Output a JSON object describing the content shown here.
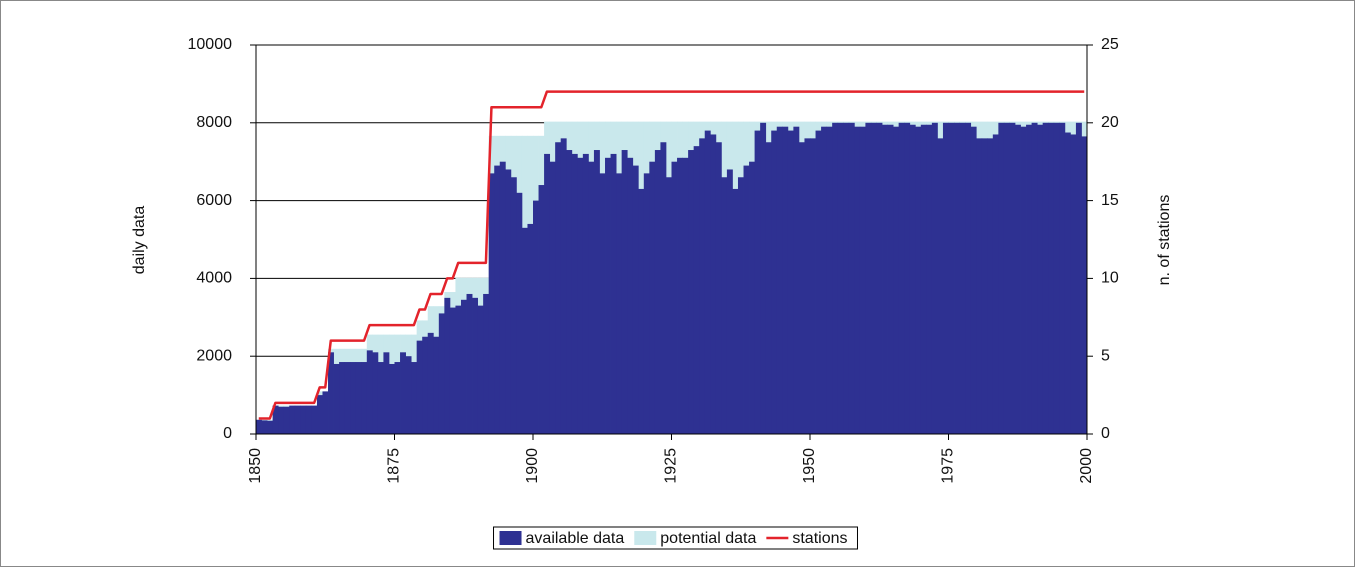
{
  "chart_data": {
    "type": "bar",
    "x_label": "",
    "y_label": "daily data",
    "y2_label": "n. of stations",
    "x": [
      1850,
      1851,
      1852,
      1853,
      1854,
      1855,
      1856,
      1857,
      1858,
      1859,
      1860,
      1861,
      1862,
      1863,
      1864,
      1865,
      1866,
      1867,
      1868,
      1869,
      1870,
      1871,
      1872,
      1873,
      1874,
      1875,
      1876,
      1877,
      1878,
      1879,
      1880,
      1881,
      1882,
      1883,
      1884,
      1885,
      1886,
      1887,
      1888,
      1889,
      1890,
      1891,
      1892,
      1893,
      1894,
      1895,
      1896,
      1897,
      1898,
      1899,
      1900,
      1901,
      1902,
      1903,
      1904,
      1905,
      1906,
      1907,
      1908,
      1909,
      1910,
      1911,
      1912,
      1913,
      1914,
      1915,
      1916,
      1917,
      1918,
      1919,
      1920,
      1921,
      1922,
      1923,
      1924,
      1925,
      1926,
      1927,
      1928,
      1929,
      1930,
      1931,
      1932,
      1933,
      1934,
      1935,
      1936,
      1937,
      1938,
      1939,
      1940,
      1941,
      1942,
      1943,
      1944,
      1945,
      1946,
      1947,
      1948,
      1949,
      1950,
      1951,
      1952,
      1953,
      1954,
      1955,
      1956,
      1957,
      1958,
      1959,
      1960,
      1961,
      1962,
      1963,
      1964,
      1965,
      1966,
      1967,
      1968,
      1969,
      1970,
      1971,
      1972,
      1973,
      1974,
      1975,
      1976,
      1977,
      1978,
      1979,
      1980,
      1981,
      1982,
      1983,
      1984,
      1985,
      1986,
      1987,
      1988,
      1989,
      1990,
      1991,
      1992,
      1993,
      1994,
      1995,
      1996,
      1997,
      1998,
      1999
    ],
    "series": [
      {
        "name": "available data",
        "color": "#2e3192",
        "type": "bar",
        "values": [
          365,
          350,
          340,
          730,
          700,
          700,
          730,
          730,
          730,
          730,
          730,
          1000,
          1095,
          2100,
          1800,
          1850,
          1850,
          1850,
          1850,
          1850,
          2150,
          2100,
          1850,
          2100,
          1800,
          1850,
          2100,
          2000,
          1850,
          2400,
          2500,
          2600,
          2500,
          3100,
          3500,
          3250,
          3300,
          3450,
          3600,
          3500,
          3300,
          3600,
          6700,
          6900,
          7000,
          6800,
          6600,
          6200,
          5300,
          5400,
          6000,
          6400,
          7200,
          7000,
          7500,
          7600,
          7300,
          7200,
          7100,
          7200,
          7000,
          7300,
          6700,
          7100,
          7200,
          6700,
          7300,
          7100,
          6900,
          6300,
          6700,
          7000,
          7300,
          7500,
          6600,
          7000,
          7100,
          7100,
          7300,
          7400,
          7600,
          7800,
          7700,
          7500,
          6600,
          6800,
          6300,
          6600,
          6900,
          7000,
          7800,
          8000,
          7500,
          7800,
          7900,
          7900,
          7800,
          7900,
          7500,
          7600,
          7600,
          7800,
          7900,
          7900,
          8000,
          8000,
          8000,
          8000,
          7900,
          7900,
          8000,
          8000,
          8000,
          7950,
          7950,
          7900,
          8000,
          8000,
          7950,
          7900,
          7950,
          7950,
          8000,
          7600,
          8000,
          8000,
          8000,
          8000,
          8000,
          7900,
          7600,
          7600,
          7600,
          7700,
          8000,
          8000,
          8000,
          7950,
          7900,
          7950,
          8000,
          7950,
          8000,
          8000,
          8000,
          8000,
          7750,
          7700,
          8000,
          7650
        ]
      },
      {
        "name": "potential data",
        "color": "#c9e8ec",
        "type": "bar",
        "values": [
          365,
          365,
          365,
          730,
          730,
          730,
          730,
          730,
          730,
          730,
          730,
          1095,
          1095,
          2190,
          2190,
          2190,
          2190,
          2190,
          2190,
          2190,
          2555,
          2555,
          2555,
          2555,
          2555,
          2555,
          2555,
          2555,
          2555,
          2920,
          2920,
          3285,
          3285,
          3285,
          3650,
          3650,
          4015,
          4015,
          4015,
          4015,
          4015,
          4015,
          7665,
          7665,
          7665,
          7665,
          7665,
          7665,
          7665,
          7665,
          7665,
          7665,
          8030,
          8030,
          8030,
          8030,
          8030,
          8030,
          8030,
          8030,
          8030,
          8030,
          8030,
          8030,
          8030,
          8030,
          8030,
          8030,
          8030,
          8030,
          8030,
          8030,
          8030,
          8030,
          8030,
          8030,
          8030,
          8030,
          8030,
          8030,
          8030,
          8030,
          8030,
          8030,
          8030,
          8030,
          8030,
          8030,
          8030,
          8030,
          8030,
          8030,
          8030,
          8030,
          8030,
          8030,
          8030,
          8030,
          8030,
          8030,
          8030,
          8030,
          8030,
          8030,
          8030,
          8030,
          8030,
          8030,
          8030,
          8030,
          8030,
          8030,
          8030,
          8030,
          8030,
          8030,
          8030,
          8030,
          8030,
          8030,
          8030,
          8030,
          8030,
          8030,
          8030,
          8030,
          8030,
          8030,
          8030,
          8030,
          8030,
          8030,
          8030,
          8030,
          8030,
          8030,
          8030,
          8030,
          8030,
          8030,
          8030,
          8030,
          8030,
          8030,
          8030,
          8030,
          8030,
          8030,
          8030,
          8030
        ]
      },
      {
        "name": "stations",
        "color": "#e3232b",
        "type": "line",
        "axis": "y2",
        "values": [
          1,
          1,
          1,
          2,
          2,
          2,
          2,
          2,
          2,
          2,
          2,
          3,
          3,
          6,
          6,
          6,
          6,
          6,
          6,
          6,
          7,
          7,
          7,
          7,
          7,
          7,
          7,
          7,
          7,
          8,
          8,
          9,
          9,
          9,
          10,
          10,
          11,
          11,
          11,
          11,
          11,
          11,
          21,
          21,
          21,
          21,
          21,
          21,
          21,
          21,
          21,
          21,
          22,
          22,
          22,
          22,
          22,
          22,
          22,
          22,
          22,
          22,
          22,
          22,
          22,
          22,
          22,
          22,
          22,
          22,
          22,
          22,
          22,
          22,
          22,
          22,
          22,
          22,
          22,
          22,
          22,
          22,
          22,
          22,
          22,
          22,
          22,
          22,
          22,
          22,
          22,
          22,
          22,
          22,
          22,
          22,
          22,
          22,
          22,
          22,
          22,
          22,
          22,
          22,
          22,
          22,
          22,
          22,
          22,
          22,
          22,
          22,
          22,
          22,
          22,
          22,
          22,
          22,
          22,
          22,
          22,
          22,
          22,
          22,
          22,
          22,
          22,
          22,
          22,
          22,
          22,
          22,
          22,
          22,
          22,
          22,
          22,
          22,
          22,
          22,
          22,
          22,
          22,
          22,
          22,
          22,
          22,
          22,
          22,
          22
        ]
      }
    ],
    "xlim": [
      1850,
      2000
    ],
    "xticks": [
      1850,
      1875,
      1900,
      1925,
      1950,
      1975,
      2000
    ],
    "ylim": [
      0,
      10000
    ],
    "yticks": [
      0,
      2000,
      4000,
      6000,
      8000,
      10000
    ],
    "y2lim": [
      0,
      25
    ],
    "y2ticks": [
      0,
      5,
      10,
      15,
      20,
      25
    ],
    "grid": true,
    "legend": "bottom"
  }
}
